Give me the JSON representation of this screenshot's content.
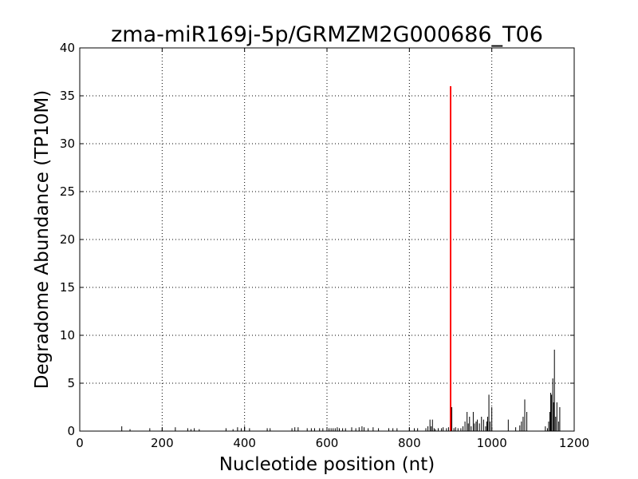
{
  "chart_data": {
    "type": "bar",
    "title": "zma-miR169j-5p/GRMZM2G000686_T06",
    "xlabel": "Nucleotide position (nt)",
    "ylabel": "Degradome Abundance (TP10M)",
    "xlim": [
      0,
      1200
    ],
    "ylim": [
      0,
      40
    ],
    "xticks": [
      0,
      200,
      400,
      600,
      800,
      1000,
      1200
    ],
    "yticks": [
      0,
      5,
      10,
      15,
      20,
      25,
      30,
      35,
      40
    ],
    "grid": true,
    "colors": {
      "series": "#000000",
      "highlight": "#ff0000",
      "grid": "#000000"
    },
    "series": [
      {
        "x": [
          102,
          122,
          170,
          200,
          232,
          262,
          270,
          278,
          290,
          355,
          372,
          383,
          392,
          400,
          412,
          455,
          462,
          515,
          522,
          530,
          552,
          562,
          570,
          582,
          590,
          600,
          605,
          610,
          615,
          620,
          625,
          630,
          638,
          645,
          660,
          670,
          678,
          685,
          690,
          700,
          712,
          725,
          750,
          760,
          770,
          800,
          812,
          820,
          840,
          845,
          850,
          853,
          856,
          860,
          863,
          870,
          878,
          882,
          890,
          895,
          903,
          908,
          912,
          918,
          925,
          930,
          935,
          940,
          943,
          946,
          950,
          955,
          958,
          962,
          965,
          970,
          975,
          980,
          985,
          988,
          990,
          993,
          996,
          1000,
          1040,
          1058,
          1068,
          1072,
          1076,
          1080,
          1085,
          1130,
          1135,
          1138,
          1141,
          1143,
          1145,
          1148,
          1150,
          1152,
          1155,
          1158,
          1162,
          1165
        ],
        "values": [
          0.5,
          0.2,
          0.3,
          0.2,
          0.4,
          0.3,
          0.2,
          0.3,
          0.2,
          0.3,
          0.2,
          0.4,
          0.3,
          0.5,
          0.3,
          0.3,
          0.3,
          0.3,
          0.4,
          0.4,
          0.3,
          0.3,
          0.3,
          0.3,
          0.3,
          0.4,
          0.3,
          0.3,
          0.3,
          0.3,
          0.4,
          0.3,
          0.3,
          0.3,
          0.4,
          0.3,
          0.4,
          0.5,
          0.4,
          0.3,
          0.4,
          0.3,
          0.3,
          0.3,
          0.3,
          0.3,
          0.3,
          0.3,
          0.3,
          0.5,
          1.2,
          0.5,
          1.2,
          0.3,
          0.2,
          0.3,
          0.3,
          0.4,
          0.3,
          0.4,
          2.5,
          0.3,
          0.4,
          0.3,
          0.3,
          0.5,
          1.0,
          2.0,
          0.8,
          1.5,
          0.5,
          2.0,
          0.8,
          1.0,
          1.2,
          0.8,
          1.5,
          1.2,
          0.5,
          1.0,
          1.5,
          3.8,
          1.0,
          2.5,
          1.2,
          0.4,
          0.6,
          1.0,
          1.5,
          3.3,
          2.0,
          0.5,
          0.3,
          1.0,
          2.0,
          4.0,
          3.8,
          5.5,
          3.0,
          8.5,
          1.5,
          3.0,
          1.0,
          2.5
        ]
      }
    ],
    "highlight": {
      "x": 900,
      "value": 36
    }
  }
}
